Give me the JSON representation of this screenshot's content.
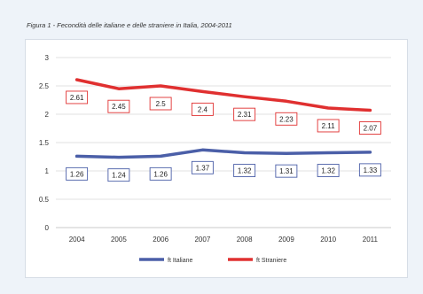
{
  "caption": "Figura 1 - Fecondità delle italiane e delle straniere in Italia, 2004-2011",
  "chart_data": {
    "type": "line",
    "title": "",
    "xlabel": "",
    "ylabel": "",
    "categories": [
      "2004",
      "2005",
      "2006",
      "2007",
      "2008",
      "2009",
      "2010",
      "2011"
    ],
    "ylim": [
      0,
      3
    ],
    "yticks": [
      "0",
      "0.5",
      "1",
      "1.5",
      "2",
      "2.5",
      "3"
    ],
    "grid": true,
    "legend": "bottom",
    "series": [
      {
        "name": "ft Italiane",
        "color": "#4b5fa8",
        "values": [
          1.26,
          1.24,
          1.26,
          1.37,
          1.32,
          1.31,
          1.32,
          1.33
        ],
        "labels": [
          "1.26",
          "1.24",
          "1.26",
          "1.37",
          "1.32",
          "1.31",
          "1.32",
          "1.33"
        ]
      },
      {
        "name": "ft Straniere",
        "color": "#e03030",
        "values": [
          2.61,
          2.45,
          2.5,
          2.4,
          2.31,
          2.23,
          2.11,
          2.07
        ],
        "labels": [
          "2.61",
          "2.45",
          "2.5",
          "2.4",
          "2.31",
          "2.23",
          "2.11",
          "2.07"
        ]
      }
    ]
  }
}
